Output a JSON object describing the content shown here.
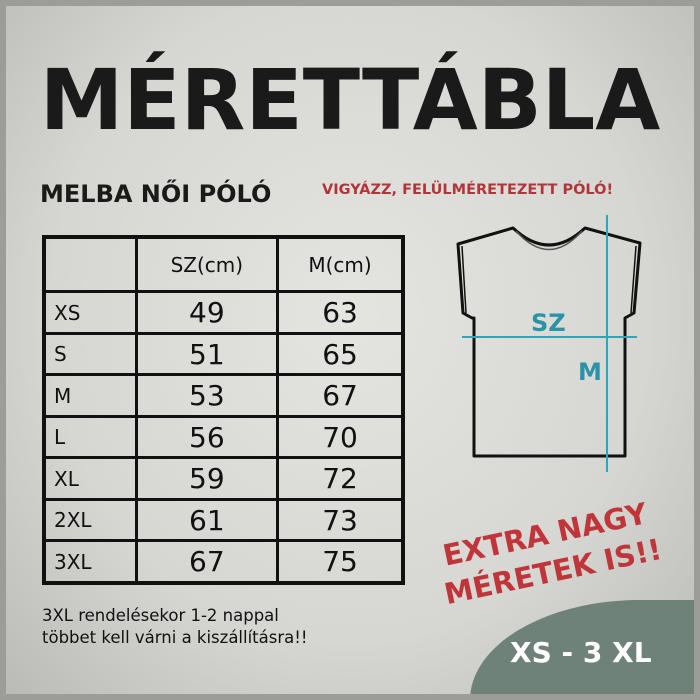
{
  "title": "MÉRETTÁBLA",
  "subtitle": "MELBA NŐI PÓLÓ",
  "warning": "VIGYÁZZ, FELÜLMÉRETEZETT PÓLÓ!",
  "table": {
    "headers": [
      "",
      "SZ(cm)",
      "M(cm)"
    ],
    "rows": [
      [
        "XS",
        "49",
        "63"
      ],
      [
        "S",
        "51",
        "65"
      ],
      [
        "M",
        "53",
        "67"
      ],
      [
        "L",
        "56",
        "70"
      ],
      [
        "XL",
        "59",
        "72"
      ],
      [
        "2XL",
        "61",
        "73"
      ],
      [
        "3XL",
        "67",
        "75"
      ]
    ]
  },
  "diagram": {
    "width_label": "SZ",
    "length_label": "M",
    "accent_color": "#2aa7bf"
  },
  "extra": {
    "line1": "EXTRA NAGY",
    "line2": "MÉRETEK IS!!",
    "color": "#c0353a"
  },
  "note": {
    "line1": "3XL rendelésekor 1-2 nappal",
    "line2": "többet kell várni a kiszállításra!!"
  },
  "size_range": "XS - 3 XL"
}
